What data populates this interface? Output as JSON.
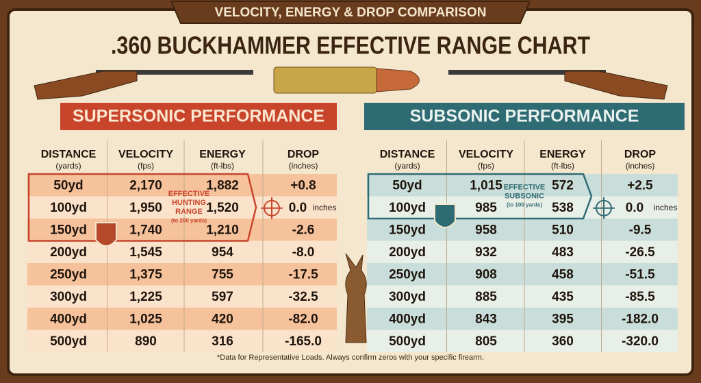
{
  "header": {
    "subtitle": "VELOCITY, ENERGY & DROP COMPARISON",
    "title": ".360 BUCKHAMMER EFFECTIVE RANGE CHART"
  },
  "tables": [
    {
      "heading": "SUPERSONIC PERFORMANCE",
      "columns": [
        {
          "name": "DISTANCE",
          "unit": "(yards)"
        },
        {
          "name": "VELOCITY",
          "unit": "(fps)"
        },
        {
          "name": "ENERGY",
          "unit": "(ft-lbs)"
        },
        {
          "name": "DROP",
          "unit": "(inches)"
        }
      ],
      "rows": [
        [
          "50yd",
          "2,170",
          "1,882",
          "+0.8"
        ],
        [
          "100yd",
          "1,950",
          "1,520",
          "0.0"
        ],
        [
          "150yd",
          "1,740",
          "1,210",
          "-2.6"
        ],
        [
          "200yd",
          "1,545",
          "954",
          "-8.0"
        ],
        [
          "250yd",
          "1,375",
          "755",
          "-17.5"
        ],
        [
          "300yd",
          "1,225",
          "597",
          "-32.5"
        ],
        [
          "400yd",
          "1,025",
          "420",
          "-82.0"
        ],
        [
          "500yd",
          "890",
          "316",
          "-165.0"
        ]
      ],
      "zero_unit": "inches",
      "annotation": [
        "EFFECTIVE",
        "HUNTING",
        "RANGE",
        "(to 200 yards)"
      ]
    },
    {
      "heading": "SUBSONIC PERFORMANCE",
      "columns": [
        {
          "name": "DISTANCE",
          "unit": "(yards)"
        },
        {
          "name": "VELOCITY",
          "unit": "(fps)"
        },
        {
          "name": "ENERGY",
          "unit": "(ft-lbs)"
        },
        {
          "name": "DROP",
          "unit": "(inches)"
        }
      ],
      "rows": [
        [
          "50yd",
          "1,015",
          "572",
          "+2.5"
        ],
        [
          "100yd",
          "985",
          "538",
          "0.0"
        ],
        [
          "150yd",
          "958",
          "510",
          "-9.5"
        ],
        [
          "200yd",
          "932",
          "483",
          "-26.5"
        ],
        [
          "250yd",
          "908",
          "458",
          "-51.5"
        ],
        [
          "300yd",
          "885",
          "435",
          "-85.5"
        ],
        [
          "400yd",
          "843",
          "395",
          "-182.0"
        ],
        [
          "500yd",
          "805",
          "360",
          "-320.0"
        ]
      ],
      "zero_unit": "inches",
      "annotation": [
        "EFFECTIVE",
        "SUBSONIC",
        "(to 100 yards)"
      ]
    }
  ],
  "footnote": "*Data for Representative Loads. Always confirm zeros with your specific firearm."
}
